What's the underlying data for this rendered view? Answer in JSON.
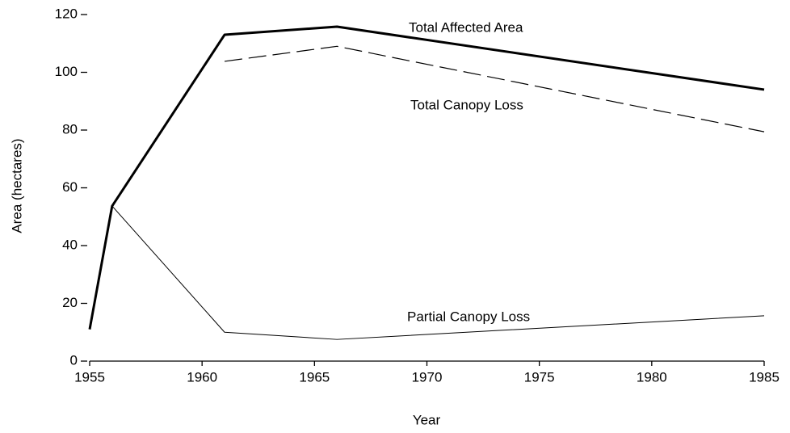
{
  "chart_data": {
    "type": "line",
    "x_label": "Year",
    "y_label": "Area (hectares)",
    "x": [
      1955,
      1956,
      1961,
      1966,
      1985
    ],
    "series": [
      {
        "name": "Total Affected Area",
        "color": "#000000",
        "line_style": "solid",
        "values": [
          11,
          53.7,
          113,
          115.8,
          94
        ]
      },
      {
        "name": "Total Canopy Loss",
        "color": "#000000",
        "line_style": "dashed",
        "values": [
          null,
          null,
          103.8,
          109,
          79.4
        ]
      },
      {
        "name": "Partial Canopy Loss",
        "color": "#000000",
        "line_style": "solid",
        "values": [
          null,
          53.7,
          10,
          7.5,
          15.7
        ]
      }
    ],
    "xlim": [
      1955,
      1985
    ],
    "xticks": [
      1955,
      1960,
      1965,
      1970,
      1975,
      1980,
      1985
    ],
    "ylim": [
      0,
      120
    ],
    "yticks": [
      0,
      20,
      40,
      60,
      80,
      100,
      120
    ],
    "grid": false
  }
}
